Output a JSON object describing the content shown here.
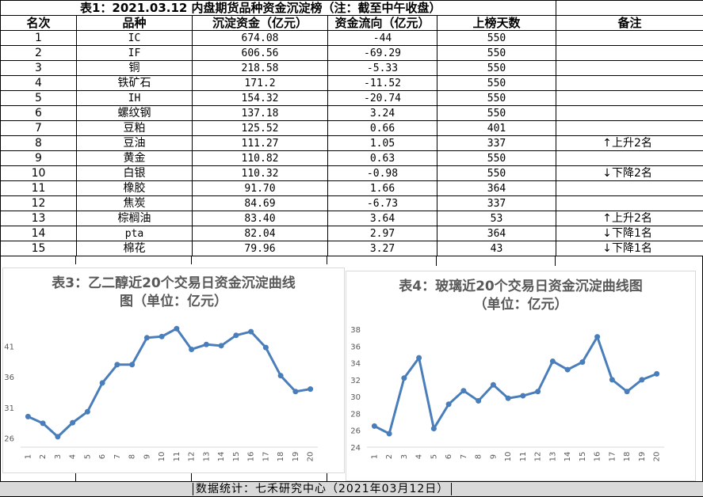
{
  "table": {
    "title": "表1：2021.03.12 内盘期货品种资金沉淀榜（注：截至中午收盘）",
    "headers": [
      "名次",
      "品种",
      "沉淀资金（亿元）",
      "资金流向（亿元）",
      "上榜天数",
      "备注"
    ],
    "rows": [
      {
        "rank": "1",
        "name": "IC",
        "amount": "674.08",
        "flow": "-44",
        "days": "550",
        "note_arrow": "",
        "note_text": ""
      },
      {
        "rank": "2",
        "name": "IF",
        "amount": "606.56",
        "flow": "-69.29",
        "days": "550",
        "note_arrow": "",
        "note_text": ""
      },
      {
        "rank": "3",
        "name": "铜",
        "amount": "218.58",
        "flow": "-5.33",
        "days": "550",
        "note_arrow": "",
        "note_text": ""
      },
      {
        "rank": "4",
        "name": "铁矿石",
        "amount": "171.2",
        "flow": "-11.52",
        "days": "550",
        "note_arrow": "",
        "note_text": ""
      },
      {
        "rank": "5",
        "name": "IH",
        "amount": "154.32",
        "flow": "-20.74",
        "days": "550",
        "note_arrow": "",
        "note_text": ""
      },
      {
        "rank": "6",
        "name": "螺纹钢",
        "amount": "137.18",
        "flow": "3.24",
        "days": "550",
        "note_arrow": "",
        "note_text": ""
      },
      {
        "rank": "7",
        "name": "豆粕",
        "amount": "125.52",
        "flow": "0.66",
        "days": "401",
        "note_arrow": "",
        "note_text": ""
      },
      {
        "rank": "8",
        "name": "豆油",
        "amount": "111.27",
        "flow": "1.05",
        "days": "337",
        "note_arrow": "↑",
        "note_text": "上升2名"
      },
      {
        "rank": "9",
        "name": "黄金",
        "amount": "110.82",
        "flow": "0.63",
        "days": "550",
        "note_arrow": "",
        "note_text": ""
      },
      {
        "rank": "10",
        "name": "白银",
        "amount": "110.32",
        "flow": "-0.98",
        "days": "550",
        "note_arrow": "↓",
        "note_text": "下降2名"
      },
      {
        "rank": "11",
        "name": "橡胶",
        "amount": "91.70",
        "flow": "1.66",
        "days": "364",
        "note_arrow": "",
        "note_text": ""
      },
      {
        "rank": "12",
        "name": "焦炭",
        "amount": "84.69",
        "flow": "-6.73",
        "days": "337",
        "note_arrow": "",
        "note_text": ""
      },
      {
        "rank": "13",
        "name": "棕榈油",
        "amount": "83.40",
        "flow": "3.64",
        "days": "53",
        "note_arrow": "↑",
        "note_text": "上升2名"
      },
      {
        "rank": "14",
        "name": "pta",
        "amount": "82.04",
        "flow": "2.97",
        "days": "364",
        "note_arrow": "↓",
        "note_text": "下降1名"
      },
      {
        "rank": "15",
        "name": "棉花",
        "amount": "79.96",
        "flow": "3.27",
        "days": "43",
        "note_arrow": "↓",
        "note_text": "下降1名"
      }
    ]
  },
  "chart_data": [
    {
      "type": "line",
      "title": "表3：乙二醇近20个交易日资金沉淀曲线图（单位：亿元）",
      "title_lines": [
        "表3：乙二醇近20个交易日资金沉淀曲线",
        "图（单位：亿元）"
      ],
      "x": [
        "1",
        "2",
        "3",
        "4",
        "5",
        "6",
        "7",
        "8",
        "9",
        "10",
        "11",
        "12",
        "13",
        "14",
        "15",
        "16",
        "17",
        "18",
        "19",
        "20"
      ],
      "values": [
        29.5,
        28.4,
        26.2,
        28.5,
        30.3,
        35,
        38,
        38,
        42.4,
        42.6,
        43.9,
        40.5,
        41.3,
        41.1,
        42.8,
        43.4,
        40.8,
        36.2,
        33.6,
        34
      ],
      "yticks": [
        26,
        31,
        36,
        41
      ],
      "ylim": [
        24.5,
        46
      ],
      "color": "#4a7ebb",
      "grid": false
    },
    {
      "type": "line",
      "title": "表4：玻璃近20个交易日资金沉淀曲线图（单位：亿元）",
      "title_lines": [
        "表4：玻璃近20个交易日资金沉淀曲线图",
        "（单位：亿元）"
      ],
      "x": [
        "1",
        "2",
        "3",
        "4",
        "5",
        "6",
        "7",
        "8",
        "9",
        "10",
        "11",
        "12",
        "13",
        "14",
        "15",
        "16",
        "17",
        "18",
        "19",
        "20"
      ],
      "values": [
        26.5,
        25.6,
        32.2,
        34.6,
        26.2,
        29.1,
        30.7,
        29.5,
        31.4,
        29.8,
        30.1,
        30.6,
        34.2,
        33.2,
        34.1,
        37.1,
        32,
        30.6,
        32,
        32.7
      ],
      "yticks": [
        24,
        26,
        28,
        30,
        32,
        34,
        36,
        38
      ],
      "ylim": [
        24,
        38
      ],
      "color": "#4a7ebb",
      "grid": false
    }
  ],
  "footer": {
    "text": "数据统计：七禾研究中心（2021年03月12日）"
  }
}
